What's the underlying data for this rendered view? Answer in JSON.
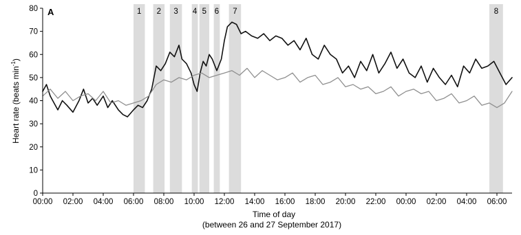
{
  "chart_data": {
    "type": "line",
    "panel_label": "A",
    "xlabel": "Time of day",
    "xlabel_sub": "(between 26 and 27 September 2017)",
    "ylabel": "Heart rate (beats min",
    "ylabel_sup": "-1",
    "ylabel_close": ")",
    "ylim": [
      0,
      80
    ],
    "yticks": [
      "0",
      "10",
      "20",
      "30",
      "40",
      "50",
      "60",
      "70",
      "80"
    ],
    "xlim_hours": [
      0,
      31
    ],
    "xticks": [
      "00:00",
      "02:00",
      "04:00",
      "06:00",
      "08:00",
      "10:00",
      "12:00",
      "14:00",
      "16:00",
      "18:00",
      "20:00",
      "22:00",
      "00:00",
      "02:00",
      "04:00",
      "06:00"
    ],
    "grid": false,
    "colors": {
      "series_dark": "#111111",
      "series_light": "#8f8f8f",
      "band": "#dcdcdc"
    },
    "bands": [
      {
        "label": "1",
        "start": 6.0,
        "end": 6.75
      },
      {
        "label": "2",
        "start": 7.3,
        "end": 8.05
      },
      {
        "label": "3",
        "start": 8.4,
        "end": 9.2
      },
      {
        "label": "4",
        "start": 9.85,
        "end": 10.25
      },
      {
        "label": "5",
        "start": 10.35,
        "end": 11.0
      },
      {
        "label": "6",
        "start": 11.3,
        "end": 11.7
      },
      {
        "label": "7",
        "start": 12.3,
        "end": 13.1
      },
      {
        "label": "8",
        "start": 29.5,
        "end": 30.4
      }
    ],
    "series": [
      {
        "x": [
          0,
          0.25,
          0.5,
          0.75,
          1,
          1.3,
          1.6,
          2,
          2.4,
          2.7,
          3,
          3.3,
          3.6,
          4,
          4.3,
          4.6,
          5,
          5.3,
          5.6,
          6,
          6.3,
          6.6,
          6.9,
          7.2,
          7.5,
          7.8,
          8.1,
          8.4,
          8.7,
          9,
          9.2,
          9.5,
          9.8,
          10,
          10.2,
          10.4,
          10.6,
          10.8,
          11,
          11.2,
          11.5,
          11.8,
          12,
          12.2,
          12.5,
          12.8,
          13.1,
          13.4,
          13.8,
          14.2,
          14.6,
          15,
          15.4,
          15.8,
          16.2,
          16.6,
          17,
          17.4,
          17.8,
          18.2,
          18.6,
          19,
          19.4,
          19.8,
          20.2,
          20.6,
          21,
          21.4,
          21.8,
          22.2,
          22.6,
          23,
          23.4,
          23.8,
          24.2,
          24.6,
          25,
          25.4,
          25.8,
          26.2,
          26.6,
          27,
          27.4,
          27.8,
          28.2,
          28.6,
          29,
          29.4,
          29.8,
          30.2,
          30.6,
          31
        ],
        "y": [
          44,
          47,
          42,
          39,
          36,
          40,
          38,
          35,
          40,
          45,
          39,
          41,
          38,
          42,
          37,
          40,
          36,
          34,
          33,
          36,
          38,
          37,
          40,
          45,
          55,
          53,
          56,
          61,
          59,
          64,
          58,
          56,
          52,
          47,
          44,
          52,
          57,
          55,
          60,
          58,
          53,
          58,
          66,
          72,
          74,
          73,
          69,
          70,
          68,
          67,
          69,
          66,
          68,
          67,
          64,
          66,
          62,
          67,
          60,
          58,
          64,
          60,
          58,
          52,
          55,
          50,
          57,
          53,
          60,
          52,
          56,
          61,
          54,
          58,
          52,
          50,
          55,
          48,
          54,
          50,
          47,
          51,
          46,
          55,
          52,
          58,
          54,
          55,
          57,
          52,
          47,
          50
        ]
      },
      {
        "x": [
          0,
          0.5,
          1,
          1.5,
          2,
          2.5,
          3,
          3.5,
          4,
          4.5,
          5,
          5.5,
          6,
          6.5,
          7,
          7.5,
          8,
          8.5,
          9,
          9.5,
          10,
          10.5,
          11,
          11.5,
          12,
          12.5,
          13,
          13.5,
          14,
          14.5,
          15,
          15.5,
          16,
          16.5,
          17,
          17.5,
          18,
          18.5,
          19,
          19.5,
          20,
          20.5,
          21,
          21.5,
          22,
          22.5,
          23,
          23.5,
          24,
          24.5,
          25,
          25.5,
          26,
          26.5,
          27,
          27.5,
          28,
          28.5,
          29,
          29.5,
          30,
          30.5,
          31
        ],
        "y": [
          42,
          45,
          41,
          44,
          40,
          42,
          43,
          40,
          44,
          39,
          40,
          38,
          39,
          40,
          42,
          47,
          49,
          48,
          50,
          49,
          51,
          52,
          50,
          51,
          52,
          53,
          51,
          54,
          50,
          53,
          51,
          49,
          50,
          52,
          48,
          50,
          51,
          47,
          48,
          50,
          46,
          47,
          45,
          46,
          43,
          44,
          46,
          42,
          44,
          45,
          43,
          44,
          40,
          41,
          43,
          39,
          40,
          42,
          38,
          39,
          37,
          39,
          44
        ]
      }
    ]
  }
}
